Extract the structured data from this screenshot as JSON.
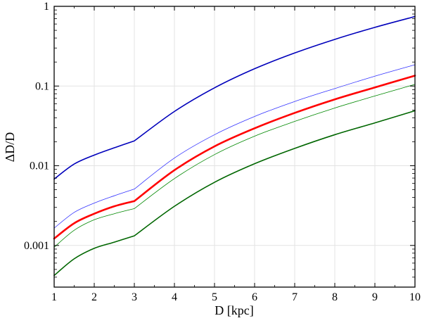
{
  "chart_data": {
    "type": "line",
    "title": "",
    "xlabel": "D [kpc]",
    "ylabel": "ΔD/D",
    "xlim": [
      1,
      10
    ],
    "ylim": [
      0.0003,
      1
    ],
    "yscale": "log",
    "grid": true,
    "x_ticks": [
      1,
      2,
      3,
      4,
      5,
      6,
      7,
      8,
      9,
      10
    ],
    "x_tick_labels": [
      "1",
      "2",
      "3",
      "4",
      "5",
      "6",
      "7",
      "8",
      "9",
      "10"
    ],
    "y_ticks": [
      0.001,
      0.01,
      0.1,
      1
    ],
    "y_tick_labels": [
      "0.001",
      "0.01",
      "0.1",
      "1"
    ],
    "series": [
      {
        "color": "#0000bb",
        "line_width": 1.6,
        "x": [
          1,
          1.5,
          2,
          2.5,
          3,
          4,
          5,
          6,
          7,
          8,
          9,
          10
        ],
        "y": [
          0.0068,
          0.0105,
          0.0136,
          0.0168,
          0.0205,
          0.048,
          0.095,
          0.165,
          0.26,
          0.385,
          0.545,
          0.745
        ]
      },
      {
        "color": "#3333ff",
        "line_width": 0.8,
        "x": [
          1,
          1.5,
          2,
          2.5,
          3,
          4,
          5,
          6,
          7,
          8,
          9,
          10
        ],
        "y": [
          0.00165,
          0.0026,
          0.0034,
          0.0042,
          0.0051,
          0.0125,
          0.0245,
          0.0415,
          0.064,
          0.093,
          0.133,
          0.185
        ]
      },
      {
        "color": "#ff0000",
        "line_width": 2.6,
        "x": [
          1,
          1.5,
          2,
          2.5,
          3,
          4,
          5,
          6,
          7,
          8,
          9,
          10
        ],
        "y": [
          0.00122,
          0.0019,
          0.0025,
          0.0031,
          0.0036,
          0.0088,
          0.0175,
          0.0295,
          0.046,
          0.068,
          0.096,
          0.135
        ]
      },
      {
        "color": "#008800",
        "line_width": 0.8,
        "x": [
          1,
          1.5,
          2,
          2.5,
          3,
          4,
          5,
          6,
          7,
          8,
          9,
          10
        ],
        "y": [
          0.00095,
          0.00155,
          0.0021,
          0.0025,
          0.0029,
          0.0069,
          0.0138,
          0.0235,
          0.036,
          0.053,
          0.075,
          0.105
        ]
      },
      {
        "color": "#006600",
        "line_width": 1.6,
        "x": [
          1,
          1.5,
          2,
          2.5,
          3,
          4,
          5,
          6,
          7,
          8,
          9,
          10
        ],
        "y": [
          0.00042,
          0.00068,
          0.00092,
          0.0011,
          0.00132,
          0.0031,
          0.0062,
          0.0106,
          0.0165,
          0.0245,
          0.0345,
          0.049
        ]
      }
    ]
  }
}
